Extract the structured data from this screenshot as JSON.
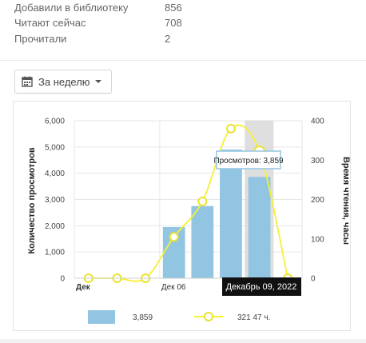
{
  "stats": [
    {
      "label": "Добавили в библиотеку",
      "value": "856"
    },
    {
      "label": "Читают сейчас",
      "value": "708"
    },
    {
      "label": "Прочитали",
      "value": "2"
    }
  ],
  "period_select": {
    "label": "За неделю",
    "icon": "calendar-icon",
    "caret_icon": "caret-down-icon"
  },
  "tooltip": {
    "text": "Просмотров: 3,859"
  },
  "hover_label": "Декабрь 09, 2022",
  "legend": {
    "bar_value": "3,859",
    "line_value": "321 47 ч."
  },
  "colors": {
    "bar": "#92c5e2",
    "line": "#f7f033",
    "marker_stroke": "#e9e330",
    "highlight": "#d4d4d4",
    "hover_label_bg": "#111111"
  },
  "chart_data": {
    "type": "bar",
    "xlabel": "",
    "ylabel": "Количество просмотров",
    "y2label": "Время чтения, часы",
    "x_tick_labels": [
      "Дек",
      "Дек 06",
      "Декабрь 09, 2022"
    ],
    "ylim": [
      0,
      6000
    ],
    "y_ticks": [
      "0",
      "1,000",
      "2,000",
      "3,000",
      "4,000",
      "5,000",
      "6,000"
    ],
    "y2lim": [
      0,
      400
    ],
    "y2_ticks": [
      "0",
      "100",
      "200",
      "300",
      "400"
    ],
    "highlighted_index": 6,
    "series": [
      {
        "kind": "bar",
        "axis": "left",
        "values": [
          0,
          0,
          0,
          1950,
          2750,
          4900,
          3859
        ]
      },
      {
        "kind": "line",
        "axis": "right",
        "values": [
          0,
          0,
          0,
          105,
          195,
          380,
          321.47,
          0
        ]
      }
    ],
    "grid": true
  }
}
